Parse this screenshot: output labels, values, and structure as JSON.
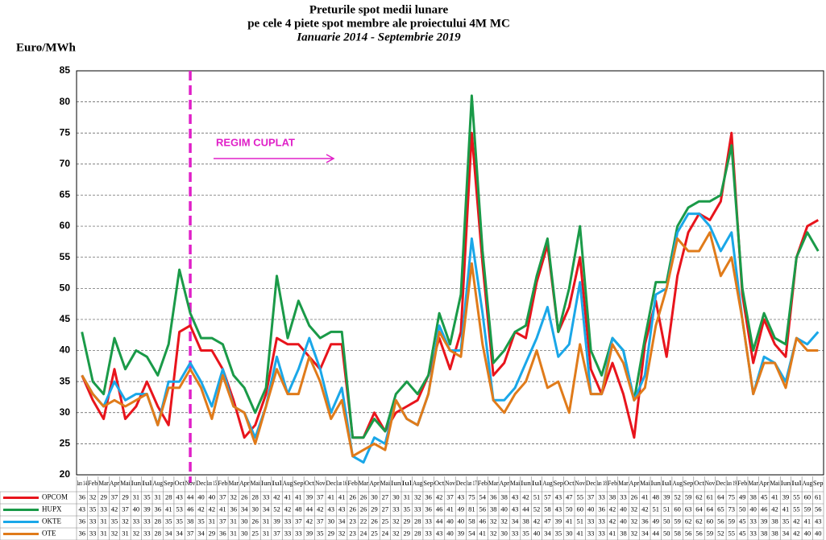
{
  "chart_data": {
    "type": "line",
    "title": "Preturile spot medii lunare",
    "subtitle": "pe cele 4 piete spot membre ale proiectului 4M MC",
    "period": "Ianuarie 2014 - Septembrie 2019",
    "y_label": "Euro/MWh",
    "annotation": "REGIM CUPLAT",
    "categories": [
      "Ian 14",
      "Feb",
      "Mar",
      "Apr",
      "Mai",
      "Iun",
      "Iul",
      "Aug",
      "Sep",
      "Oct",
      "Nov",
      "Dec",
      "Ian 15",
      "Feb",
      "Mar",
      "Apr",
      "Mai",
      "Iun",
      "Iul",
      "Aug",
      "Sep",
      "Oct",
      "Nov",
      "Dec",
      "Ian 16",
      "Feb",
      "Mar",
      "Apr",
      "Mai",
      "Iun",
      "Iul",
      "Aug",
      "Sep",
      "Oct",
      "Nov",
      "Dec",
      "Ian 17",
      "Feb",
      "Mar",
      "Apr",
      "Mai",
      "Iun",
      "Iul",
      "Aug",
      "Sep",
      "Oct",
      "Nov",
      "Dec",
      "Ian 18",
      "Feb",
      "Mar",
      "Apr",
      "Mai",
      "Iun",
      "Iul",
      "Aug",
      "Sep",
      "Oct",
      "Nov",
      "Dec",
      "Ian 19",
      "Feb",
      "Mar",
      "Apr",
      "Mai",
      "Iun",
      "Iul",
      "Aug",
      "Sep"
    ],
    "series": [
      {
        "name": "OPCOM",
        "color": "#e8141c",
        "values": [
          36,
          32,
          29,
          37,
          29,
          31,
          35,
          31,
          28,
          43,
          44,
          40,
          40,
          37,
          32,
          26,
          28,
          33,
          42,
          41,
          41,
          39,
          37,
          41,
          41,
          26,
          26,
          30,
          27,
          30,
          31,
          32,
          36,
          42,
          37,
          43,
          75,
          54,
          36,
          38,
          43,
          42,
          51,
          57,
          43,
          47,
          55,
          37,
          33,
          38,
          33,
          26,
          41,
          48,
          39,
          52,
          59,
          62,
          61,
          64,
          75,
          49,
          38,
          45,
          41,
          39,
          55,
          60,
          61
        ]
      },
      {
        "name": "HUPX",
        "color": "#1a9a48",
        "values": [
          43,
          35,
          33,
          42,
          37,
          40,
          39,
          36,
          41,
          53,
          46,
          42,
          42,
          41,
          36,
          34,
          30,
          34,
          52,
          42,
          48,
          44,
          42,
          43,
          43,
          26,
          26,
          29,
          27,
          33,
          35,
          33,
          36,
          46,
          41,
          49,
          81,
          56,
          38,
          40,
          43,
          44,
          52,
          58,
          43,
          50,
          60,
          40,
          36,
          42,
          40,
          32,
          42,
          51,
          51,
          60,
          63,
          64,
          64,
          65,
          73,
          50,
          40,
          46,
          42,
          41,
          55,
          59,
          56
        ]
      },
      {
        "name": "OKTE",
        "color": "#1aa7e8",
        "values": [
          36,
          33,
          31,
          35,
          32,
          33,
          33,
          28,
          35,
          35,
          38,
          35,
          31,
          37,
          31,
          30,
          26,
          31,
          39,
          33,
          37,
          42,
          37,
          30,
          34,
          23,
          22,
          26,
          25,
          32,
          29,
          28,
          33,
          44,
          40,
          40,
          58,
          46,
          32,
          32,
          34,
          38,
          42,
          47,
          39,
          41,
          51,
          33,
          33,
          42,
          40,
          32,
          36,
          49,
          50,
          59,
          62,
          62,
          60,
          56,
          59,
          45,
          33,
          39,
          38,
          35,
          42,
          41,
          43
        ]
      },
      {
        "name": "OTE",
        "color": "#e07b1a",
        "values": [
          36,
          33,
          31,
          32,
          31,
          32,
          33,
          28,
          34,
          34,
          37,
          34,
          29,
          36,
          31,
          30,
          25,
          31,
          37,
          33,
          33,
          39,
          35,
          29,
          32,
          23,
          24,
          25,
          24,
          32,
          29,
          28,
          33,
          43,
          40,
          39,
          54,
          41,
          32,
          30,
          33,
          35,
          40,
          34,
          35,
          30,
          41,
          33,
          33,
          41,
          38,
          32,
          34,
          44,
          50,
          58,
          56,
          56,
          59,
          52,
          55,
          45,
          33,
          38,
          38,
          34,
          42,
          40,
          40
        ]
      }
    ],
    "ylim": [
      20,
      85
    ],
    "yticks": [
      20,
      25,
      30,
      35,
      40,
      45,
      50,
      55,
      60,
      65,
      70,
      75,
      80,
      85
    ],
    "grid": true
  }
}
